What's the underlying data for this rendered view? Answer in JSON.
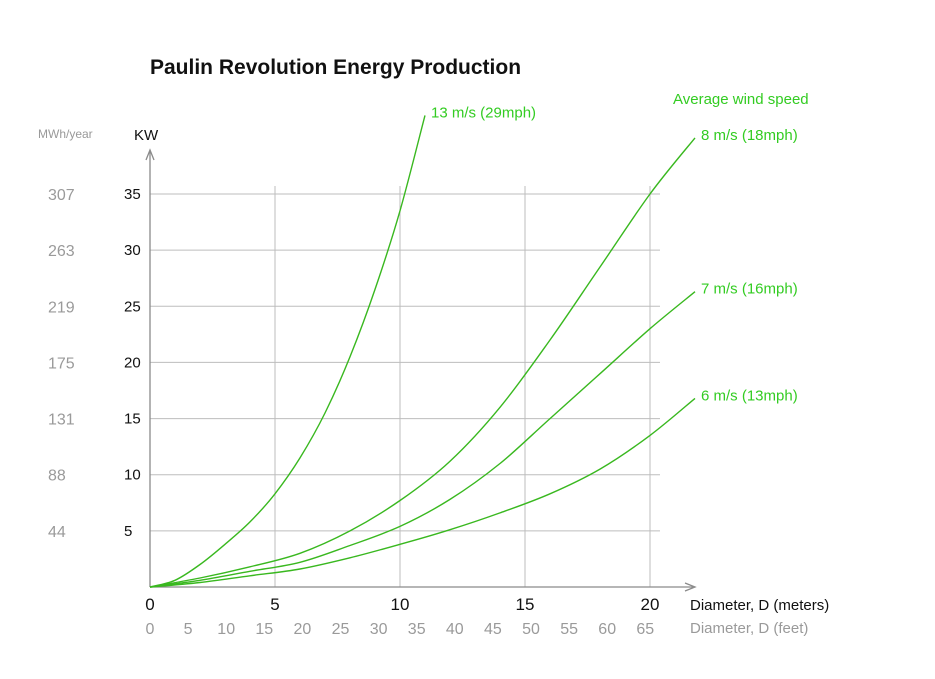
{
  "chart_data": {
    "type": "line",
    "title": "Paulin Revolution Energy Production",
    "ylabel": "KW",
    "ylabel_secondary": "MWh/year",
    "xlabel": "Diameter, D (meters)",
    "xlabel_secondary": "Diameter, D (feet)",
    "xlim": [
      0,
      20
    ],
    "ylim": [
      0,
      35
    ],
    "grid": true,
    "x_ticks": [
      0,
      5,
      10,
      15,
      20
    ],
    "x_ticks_secondary": [
      "0",
      "5",
      "10",
      "15",
      "20",
      "25",
      "30",
      "35",
      "40",
      "45",
      "50",
      "55",
      "60",
      "65"
    ],
    "y_ticks": [
      5,
      10,
      15,
      20,
      25,
      30,
      35
    ],
    "y_ticks_secondary": [
      "44",
      "88",
      "131",
      "175",
      "219",
      "263",
      "307"
    ],
    "legend_title": "Average wind speed",
    "legend_placement": "right",
    "series": [
      {
        "name": "13 m/s (29mph)",
        "x": [
          0,
          1,
          2,
          3,
          4,
          5,
          6,
          7,
          8,
          9,
          10,
          11
        ],
        "y": [
          0,
          0.6,
          2.0,
          3.8,
          5.8,
          8.3,
          11.5,
          15.5,
          20.5,
          26.5,
          33.5,
          42.0
        ]
      },
      {
        "name": "8 m/s (18mph)",
        "x": [
          0,
          2,
          4,
          6,
          8,
          10,
          12,
          14,
          16,
          18,
          20,
          21.8
        ],
        "y": [
          0,
          0.8,
          1.8,
          3.0,
          5.0,
          7.7,
          11.2,
          16.0,
          22.0,
          28.5,
          35.0,
          40.0
        ]
      },
      {
        "name": "7 m/s (16mph)",
        "x": [
          0,
          2,
          4,
          6,
          8,
          10,
          12,
          14,
          16,
          18,
          20,
          21.8
        ],
        "y": [
          0,
          0.6,
          1.4,
          2.2,
          3.7,
          5.4,
          7.8,
          11.0,
          15.0,
          19.0,
          23.0,
          26.3
        ]
      },
      {
        "name": "6 m/s (13mph)",
        "x": [
          0,
          2,
          4,
          6,
          8,
          10,
          12,
          14,
          16,
          18,
          20,
          21.8
        ],
        "y": [
          0,
          0.4,
          1.0,
          1.6,
          2.6,
          3.8,
          5.1,
          6.6,
          8.3,
          10.5,
          13.5,
          16.8
        ]
      }
    ]
  },
  "style": {
    "curve_color": "#39b81f",
    "label_color": "#33cc22",
    "grid_color": "#bdbdbd",
    "muted_text_color": "#9a9a9a"
  }
}
